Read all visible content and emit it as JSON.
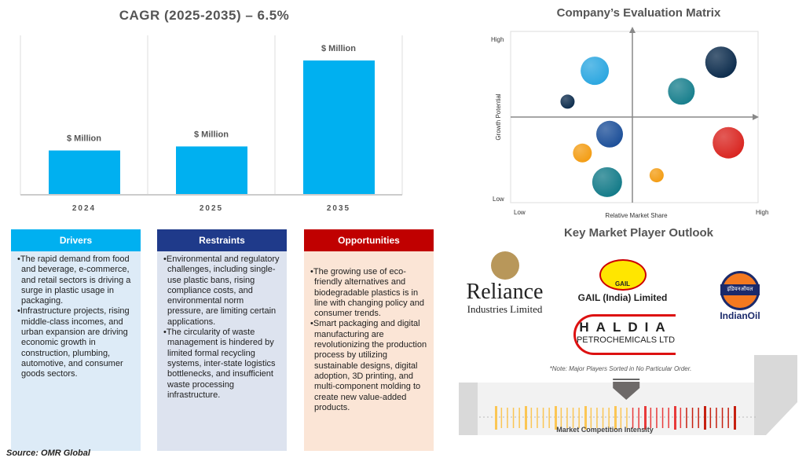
{
  "chart_data": [
    {
      "type": "bar",
      "title": "CAGR (2025-2035) – 6.5%",
      "categories": [
        "2024",
        "2025",
        "2035"
      ],
      "values": [
        33,
        36,
        100
      ],
      "data_labels": [
        "$ Million",
        "$ Million",
        "$ Million"
      ],
      "xlabel": "",
      "ylabel": "",
      "color": "#00b0f0",
      "grid": "vertical separators"
    },
    {
      "type": "scatter",
      "title": "Company’s Evaluation Matrix",
      "xlabel": "Relative Market Share",
      "ylabel": "Growth Potential",
      "x_ticks": [
        "Low",
        "High"
      ],
      "y_ticks": [
        "Low",
        "High"
      ],
      "points": [
        {
          "x": 0.34,
          "y": 0.77,
          "size": 18,
          "color": "#2aa6e0"
        },
        {
          "x": 0.85,
          "y": 0.82,
          "size": 20,
          "color": "#0b2b4c"
        },
        {
          "x": 0.69,
          "y": 0.65,
          "size": 17,
          "color": "#167e8c"
        },
        {
          "x": 0.23,
          "y": 0.59,
          "size": 9,
          "color": "#0b2b4c"
        },
        {
          "x": 0.4,
          "y": 0.4,
          "size": 17,
          "color": "#1b4e98"
        },
        {
          "x": 0.88,
          "y": 0.35,
          "size": 20,
          "color": "#d9241f"
        },
        {
          "x": 0.29,
          "y": 0.29,
          "size": 12,
          "color": "#f39c12"
        },
        {
          "x": 0.39,
          "y": 0.12,
          "size": 19,
          "color": "#127a88"
        },
        {
          "x": 0.59,
          "y": 0.16,
          "size": 9,
          "color": "#f39c12"
        }
      ]
    }
  ],
  "boxes": [
    {
      "title": "Drivers",
      "color": "#00b0f0",
      "bg": "#ddebf7",
      "items": [
        "The rapid demand from food and beverage, e-commerce, and retail sectors is driving a surge in plastic usage in packaging.",
        "Infrastructure projects, rising middle-class incomes, and urban expansion are driving economic growth in construction, plumbing, automotive, and consumer goods sectors."
      ]
    },
    {
      "title": "Restraints",
      "color": "#1f3a8a",
      "bg": "#dde3ef",
      "items": [
        "Environmental and regulatory challenges, including single-use plastic bans, rising compliance costs, and environmental norm pressure, are limiting certain applications.",
        "The circularity of waste management is hindered by limited formal recycling systems, inter-state logistics bottlenecks, and insufficient waste processing infrastructure."
      ]
    },
    {
      "title": "Opportunities",
      "color": "#c00000",
      "bg": "#fbe5d6",
      "items": [
        "The growing use of eco-friendly alternatives and biodegradable plastics is in line with changing policy and consumer trends.",
        "Smart packaging and digital manufacturing are revolutionizing the production process by utilizing sustainable designs, digital adoption, 3D printing, and multi-component molding to create new value-added products."
      ]
    }
  ],
  "kmp": {
    "title": "Key Market Player Outlook",
    "reliance": "Reliance",
    "reliance_sub": "Industries Limited",
    "gail": "GAIL (India) Limited",
    "gail_badge": "GAIL",
    "haldia": "HALDIA",
    "haldia_sub": "PETROCHEMICALS LTD",
    "indianoil": "IndianOil",
    "indianoil_badge": "इंडियनऑयल",
    "note": "*Note: Major Players Sorted in No Particular Order.",
    "intensity_label": "Market Competition Intensity",
    "intensity_level": 0.55
  },
  "source": "Source: OMR Global"
}
